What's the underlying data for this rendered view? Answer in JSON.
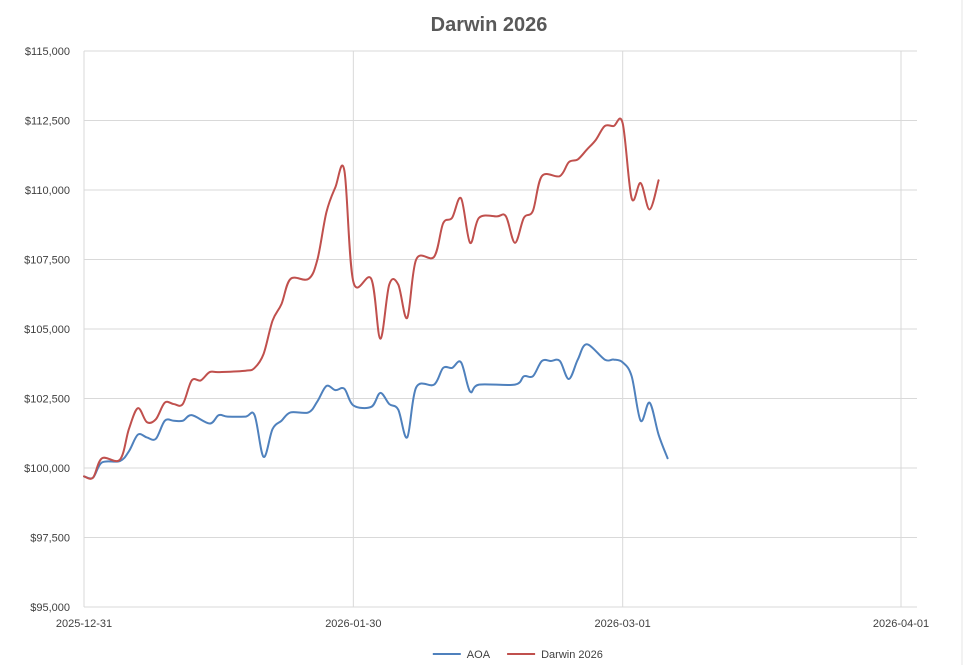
{
  "chart_data": {
    "type": "line",
    "title": "Darwin 2026",
    "xlabel": "",
    "ylabel": "",
    "x_axis": {
      "type": "date",
      "min": "2025-12-31",
      "max": "2026-04-01",
      "tick_labels": [
        "2025-12-31",
        "2026-01-30",
        "2026-03-01",
        "2026-04-01"
      ],
      "grid": true
    },
    "y_axis": {
      "min": 95000,
      "max": 115000,
      "step": 2500,
      "tick_labels": [
        "$95,000",
        "$97,500",
        "$100,000",
        "$102,500",
        "$105,000",
        "$107,500",
        "$110,000",
        "$112,500",
        "$115,000"
      ],
      "grid": true
    },
    "legend": {
      "position": "bottom"
    },
    "series": [
      {
        "name": "AOA",
        "color": "#4f81bd",
        "points": [
          [
            "2025-12-31",
            99700
          ],
          [
            "2026-01-01",
            99650
          ],
          [
            "2026-01-02",
            100200
          ],
          [
            "2026-01-04",
            100250
          ],
          [
            "2026-01-05",
            100600
          ],
          [
            "2026-01-06",
            101200
          ],
          [
            "2026-01-07",
            101100
          ],
          [
            "2026-01-08",
            101050
          ],
          [
            "2026-01-09",
            101700
          ],
          [
            "2026-01-10",
            101700
          ],
          [
            "2026-01-11",
            101700
          ],
          [
            "2026-01-12",
            101900
          ],
          [
            "2026-01-14",
            101600
          ],
          [
            "2026-01-15",
            101900
          ],
          [
            "2026-01-16",
            101850
          ],
          [
            "2026-01-18",
            101850
          ],
          [
            "2026-01-19",
            101900
          ],
          [
            "2026-01-20",
            100400
          ],
          [
            "2026-01-21",
            101400
          ],
          [
            "2026-01-22",
            101700
          ],
          [
            "2026-01-23",
            102000
          ],
          [
            "2026-01-25",
            102000
          ],
          [
            "2026-01-26",
            102400
          ],
          [
            "2026-01-27",
            102950
          ],
          [
            "2026-01-28",
            102800
          ],
          [
            "2026-01-29",
            102850
          ],
          [
            "2026-01-30",
            102250
          ],
          [
            "2026-02-01",
            102200
          ],
          [
            "2026-02-02",
            102700
          ],
          [
            "2026-02-03",
            102300
          ],
          [
            "2026-02-04",
            102100
          ],
          [
            "2026-02-05",
            101100
          ],
          [
            "2026-02-06",
            102900
          ],
          [
            "2026-02-08",
            103000
          ],
          [
            "2026-02-09",
            103600
          ],
          [
            "2026-02-10",
            103600
          ],
          [
            "2026-02-11",
            103800
          ],
          [
            "2026-02-12",
            102750
          ],
          [
            "2026-02-13",
            103000
          ],
          [
            "2026-02-17",
            103000
          ],
          [
            "2026-02-18",
            103300
          ],
          [
            "2026-02-19",
            103300
          ],
          [
            "2026-02-20",
            103850
          ],
          [
            "2026-02-21",
            103850
          ],
          [
            "2026-02-22",
            103850
          ],
          [
            "2026-02-23",
            103200
          ],
          [
            "2026-02-24",
            103900
          ],
          [
            "2026-02-25",
            104450
          ],
          [
            "2026-02-27",
            103900
          ],
          [
            "2026-02-28",
            103900
          ],
          [
            "2026-03-01",
            103800
          ],
          [
            "2026-03-02",
            103300
          ],
          [
            "2026-03-03",
            101700
          ],
          [
            "2026-03-04",
            102350
          ],
          [
            "2026-03-05",
            101200
          ],
          [
            "2026-03-06",
            100350
          ]
        ]
      },
      {
        "name": "Darwin 2026",
        "color": "#c0504d",
        "points": [
          [
            "2025-12-31",
            99700
          ],
          [
            "2026-01-01",
            99650
          ],
          [
            "2026-01-02",
            100350
          ],
          [
            "2026-01-04",
            100300
          ],
          [
            "2026-01-05",
            101400
          ],
          [
            "2026-01-06",
            102150
          ],
          [
            "2026-01-07",
            101650
          ],
          [
            "2026-01-08",
            101750
          ],
          [
            "2026-01-09",
            102350
          ],
          [
            "2026-01-10",
            102300
          ],
          [
            "2026-01-11",
            102300
          ],
          [
            "2026-01-12",
            103150
          ],
          [
            "2026-01-13",
            103150
          ],
          [
            "2026-01-14",
            103450
          ],
          [
            "2026-01-15",
            103450
          ],
          [
            "2026-01-18",
            103500
          ],
          [
            "2026-01-19",
            103600
          ],
          [
            "2026-01-20",
            104100
          ],
          [
            "2026-01-21",
            105300
          ],
          [
            "2026-01-22",
            105900
          ],
          [
            "2026-01-23",
            106800
          ],
          [
            "2026-01-25",
            106800
          ],
          [
            "2026-01-26",
            107500
          ],
          [
            "2026-01-27",
            109200
          ],
          [
            "2026-01-28",
            110100
          ],
          [
            "2026-01-29",
            110700
          ],
          [
            "2026-01-30",
            106700
          ],
          [
            "2026-02-01",
            106800
          ],
          [
            "2026-02-02",
            104650
          ],
          [
            "2026-02-03",
            106600
          ],
          [
            "2026-02-04",
            106600
          ],
          [
            "2026-02-05",
            105400
          ],
          [
            "2026-02-06",
            107500
          ],
          [
            "2026-02-08",
            107600
          ],
          [
            "2026-02-09",
            108800
          ],
          [
            "2026-02-10",
            109000
          ],
          [
            "2026-02-11",
            109700
          ],
          [
            "2026-02-12",
            108100
          ],
          [
            "2026-02-13",
            109000
          ],
          [
            "2026-02-15",
            109050
          ],
          [
            "2026-02-16",
            109050
          ],
          [
            "2026-02-17",
            108100
          ],
          [
            "2026-02-18",
            109000
          ],
          [
            "2026-02-19",
            109250
          ],
          [
            "2026-02-20",
            110500
          ],
          [
            "2026-02-22",
            110500
          ],
          [
            "2026-02-23",
            111000
          ],
          [
            "2026-02-24",
            111100
          ],
          [
            "2026-02-25",
            111450
          ],
          [
            "2026-02-26",
            111800
          ],
          [
            "2026-02-27",
            112300
          ],
          [
            "2026-02-28",
            112300
          ],
          [
            "2026-03-01",
            112400
          ],
          [
            "2026-03-02",
            109700
          ],
          [
            "2026-03-03",
            110250
          ],
          [
            "2026-03-04",
            109300
          ],
          [
            "2026-03-05",
            110350
          ]
        ]
      }
    ]
  }
}
